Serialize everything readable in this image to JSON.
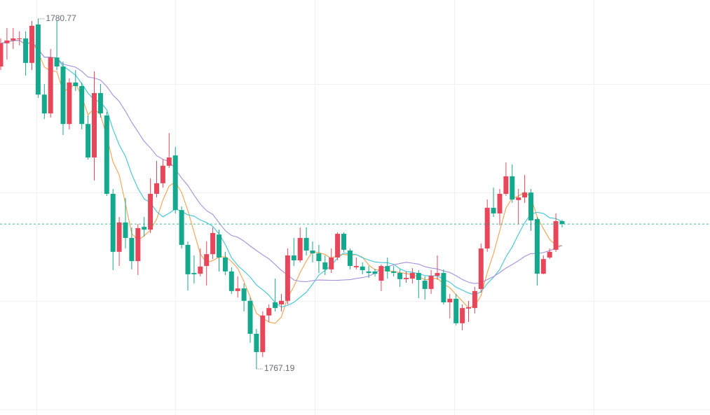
{
  "chart_data": {
    "type": "candlestick",
    "ylim": [
      1765.4,
      1781.5
    ],
    "up_color": "#e8475b",
    "down_color": "#14a88c",
    "open": [
      1778.92,
      1779.82,
      1779.93,
      1779.98,
      1780.01,
      1779.06,
      1780.55,
      1777.83,
      1777.1,
      1779.27,
      1778.92,
      1776.69,
      1778.3,
      1778.16,
      1776.69,
      1775.39,
      1777.89,
      1777.02,
      1773.98,
      1771.73,
      1772.87,
      1772.27,
      1771.37,
      1772.7,
      1772.59,
      1773.98,
      1774.39,
      1775.07,
      1775.47,
      1773.35,
      1772.0,
      1770.91,
      1770.88,
      1771.18,
      1771.64,
      1772.4,
      1771.51,
      1770.97,
      1770.21,
      1770.31,
      1769.83,
      1768.55,
      1767.84,
      1769.26,
      1769.77,
      1769.69,
      1769.83,
      1771.59,
      1771.4,
      1772.27,
      1771.78,
      1771.67,
      1771.32,
      1771.05,
      1771.51,
      1772.43,
      1771.78,
      1771.13,
      1771.16,
      1770.97,
      1770.97,
      1770.61,
      1771.18,
      1770.97,
      1770.91,
      1770.67,
      1770.69,
      1770.91,
      1770.61,
      1770.29,
      1770.8,
      1770.91,
      1769.77,
      1769.91,
      1768.96,
      1769.53,
      1769.55,
      1770.29,
      1771.86,
      1773.44,
      1773.22,
      1773.98,
      1774.66,
      1773.74,
      1773.84,
      1774.03,
      1773.0,
      1770.88,
      1771.51,
      1771.81,
      1772.92
    ],
    "high": [
      1780.01,
      1780.41,
      1780.41,
      1780.28,
      1780.28,
      1780.69,
      1780.77,
      1778.24,
      1779.6,
      1780.69,
      1779.11,
      1778.46,
      1778.78,
      1778.3,
      1777.02,
      1778.73,
      1778.24,
      1777.16,
      1774.17,
      1773.08,
      1773.82,
      1772.68,
      1772.81,
      1773.08,
      1774.58,
      1775.26,
      1775.31,
      1776.34,
      1775.8,
      1773.49,
      1772.13,
      1771.59,
      1771.86,
      1772.13,
      1772.68,
      1772.59,
      1771.73,
      1771.13,
      1770.78,
      1770.5,
      1769.96,
      1768.74,
      1769.42,
      1769.69,
      1770.69,
      1770.1,
      1771.86,
      1772.27,
      1772.68,
      1772.68,
      1772.13,
      1772.0,
      1771.59,
      1771.86,
      1772.49,
      1772.49,
      1771.86,
      1771.51,
      1771.32,
      1771.18,
      1771.07,
      1771.24,
      1771.51,
      1771.18,
      1771.05,
      1770.97,
      1771.1,
      1771.02,
      1770.78,
      1771.02,
      1771.59,
      1771.05,
      1770.1,
      1770.1,
      1769.69,
      1769.83,
      1770.37,
      1772.05,
      1773.76,
      1774.22,
      1774.17,
      1775.2,
      1775.12,
      1774.17,
      1774.71,
      1774.17,
      1773.08,
      1771.59,
      1771.86,
      1773.22,
      1772.97
    ],
    "low": [
      1778.78,
      1779.19,
      1779.6,
      1779.74,
      1778.57,
      1778.78,
      1777.7,
      1776.88,
      1776.94,
      1778.78,
      1776.26,
      1776.48,
      1777.97,
      1776.48,
      1775.31,
      1774.5,
      1776.94,
      1773.9,
      1771.02,
      1771.18,
      1771.86,
      1771.05,
      1770.83,
      1772.32,
      1772.46,
      1773.84,
      1774.22,
      1774.98,
      1773.22,
      1771.86,
      1770.23,
      1770.5,
      1770.78,
      1770.42,
      1771.45,
      1770.97,
      1770.83,
      1770.1,
      1769.96,
      1769.42,
      1768.2,
      1767.19,
      1767.65,
      1769.01,
      1769.42,
      1769.42,
      1769.69,
      1771.18,
      1771.32,
      1771.59,
      1771.32,
      1770.91,
      1770.83,
      1770.91,
      1771.4,
      1771.73,
      1771.05,
      1771.05,
      1770.86,
      1770.72,
      1770.78,
      1770.21,
      1770.69,
      1770.78,
      1770.37,
      1770.53,
      1770.5,
      1769.93,
      1769.88,
      1770.1,
      1770.64,
      1769.69,
      1769.15,
      1768.88,
      1768.69,
      1769.01,
      1769.34,
      1770.15,
      1771.73,
      1773.08,
      1772.76,
      1773.9,
      1773.63,
      1772.81,
      1773.63,
      1772.54,
      1770.42,
      1770.86,
      1771.45,
      1771.73,
      1772.68
    ],
    "close": [
      1779.82,
      1779.93,
      1780.01,
      1780.01,
      1779.06,
      1780.5,
      1777.83,
      1777.1,
      1779.27,
      1778.92,
      1776.69,
      1778.3,
      1778.16,
      1776.69,
      1775.39,
      1777.89,
      1777.1,
      1773.98,
      1771.73,
      1772.87,
      1772.27,
      1771.37,
      1772.65,
      1772.59,
      1773.98,
      1774.39,
      1775.07,
      1775.39,
      1773.35,
      1772.0,
      1770.86,
      1770.86,
      1771.16,
      1771.64,
      1772.46,
      1771.51,
      1770.97,
      1770.21,
      1770.31,
      1769.83,
      1768.55,
      1767.84,
      1769.26,
      1769.55,
      1769.55,
      1769.83,
      1771.59,
      1771.4,
      1772.27,
      1771.78,
      1771.67,
      1771.37,
      1771.05,
      1771.51,
      1772.43,
      1771.81,
      1771.18,
      1771.18,
      1771.02,
      1770.91,
      1770.88,
      1771.18,
      1770.97,
      1770.91,
      1770.67,
      1770.72,
      1770.91,
      1770.64,
      1770.29,
      1770.8,
      1770.91,
      1769.77,
      1769.91,
      1768.96,
      1769.55,
      1769.58,
      1770.21,
      1771.86,
      1773.44,
      1773.22,
      1773.98,
      1774.66,
      1773.76,
      1773.84,
      1774.03,
      1772.95,
      1770.88,
      1771.45,
      1771.73,
      1772.92,
      1772.81
    ],
    "moving_averages": [
      {
        "period": 5,
        "color": "#f4a24c"
      },
      {
        "period": 10,
        "color": "#3ec6d6"
      },
      {
        "period": 20,
        "color": "#a68fdc"
      }
    ],
    "annotations": [
      {
        "text": "1780.77"
      },
      {
        "text": "1767.19"
      }
    ],
    "grid": true
  }
}
